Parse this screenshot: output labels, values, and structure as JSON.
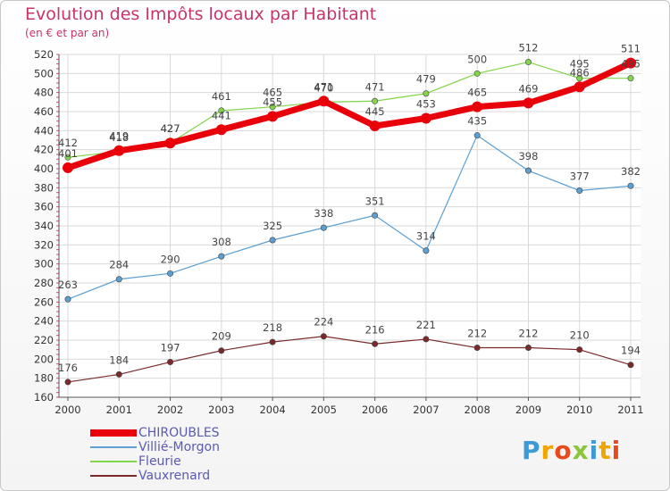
{
  "header": {
    "title": "Evolution des Impôts locaux par Habitant",
    "subtitle": "(en € et par an)"
  },
  "logo": {
    "text": "Proxiti",
    "colors": [
      "#3d9ad6",
      "#f0a500",
      "#e84a1c",
      "#8cc63f",
      "#3d9ad6",
      "#f0a500",
      "#e84a1c"
    ]
  },
  "chart_data": {
    "type": "line",
    "title": "Evolution des Impôts locaux par Habitant",
    "subtitle": "(en € et par an)",
    "x": [
      "2000",
      "2001",
      "2002",
      "2003",
      "2004",
      "2005",
      "2006",
      "2007",
      "2008",
      "2009",
      "2010",
      "2011"
    ],
    "ylim": [
      160,
      520
    ],
    "yticks": [
      160,
      180,
      200,
      220,
      240,
      260,
      280,
      300,
      320,
      340,
      360,
      380,
      400,
      420,
      440,
      460,
      480,
      500,
      520
    ],
    "grid": true,
    "legend": "bottom-left",
    "series": [
      {
        "name": "CHIROUBLES",
        "color": "#e8000b",
        "values": [
          401,
          419,
          427,
          441,
          455,
          471,
          445,
          453,
          465,
          469,
          486,
          511
        ]
      },
      {
        "name": "Villié-Morgon",
        "color": "#5b9fd3",
        "values": [
          263,
          284,
          290,
          308,
          325,
          338,
          351,
          314,
          435,
          398,
          377,
          382
        ]
      },
      {
        "name": "Fleurie",
        "color": "#82d44a",
        "values": [
          412,
          418,
          427,
          461,
          465,
          470,
          471,
          479,
          500,
          512,
          495,
          495
        ]
      },
      {
        "name": "Vauxrenard",
        "color": "#7a2a2a",
        "values": [
          176,
          184,
          197,
          209,
          218,
          224,
          216,
          221,
          212,
          212,
          210,
          194
        ]
      }
    ]
  }
}
